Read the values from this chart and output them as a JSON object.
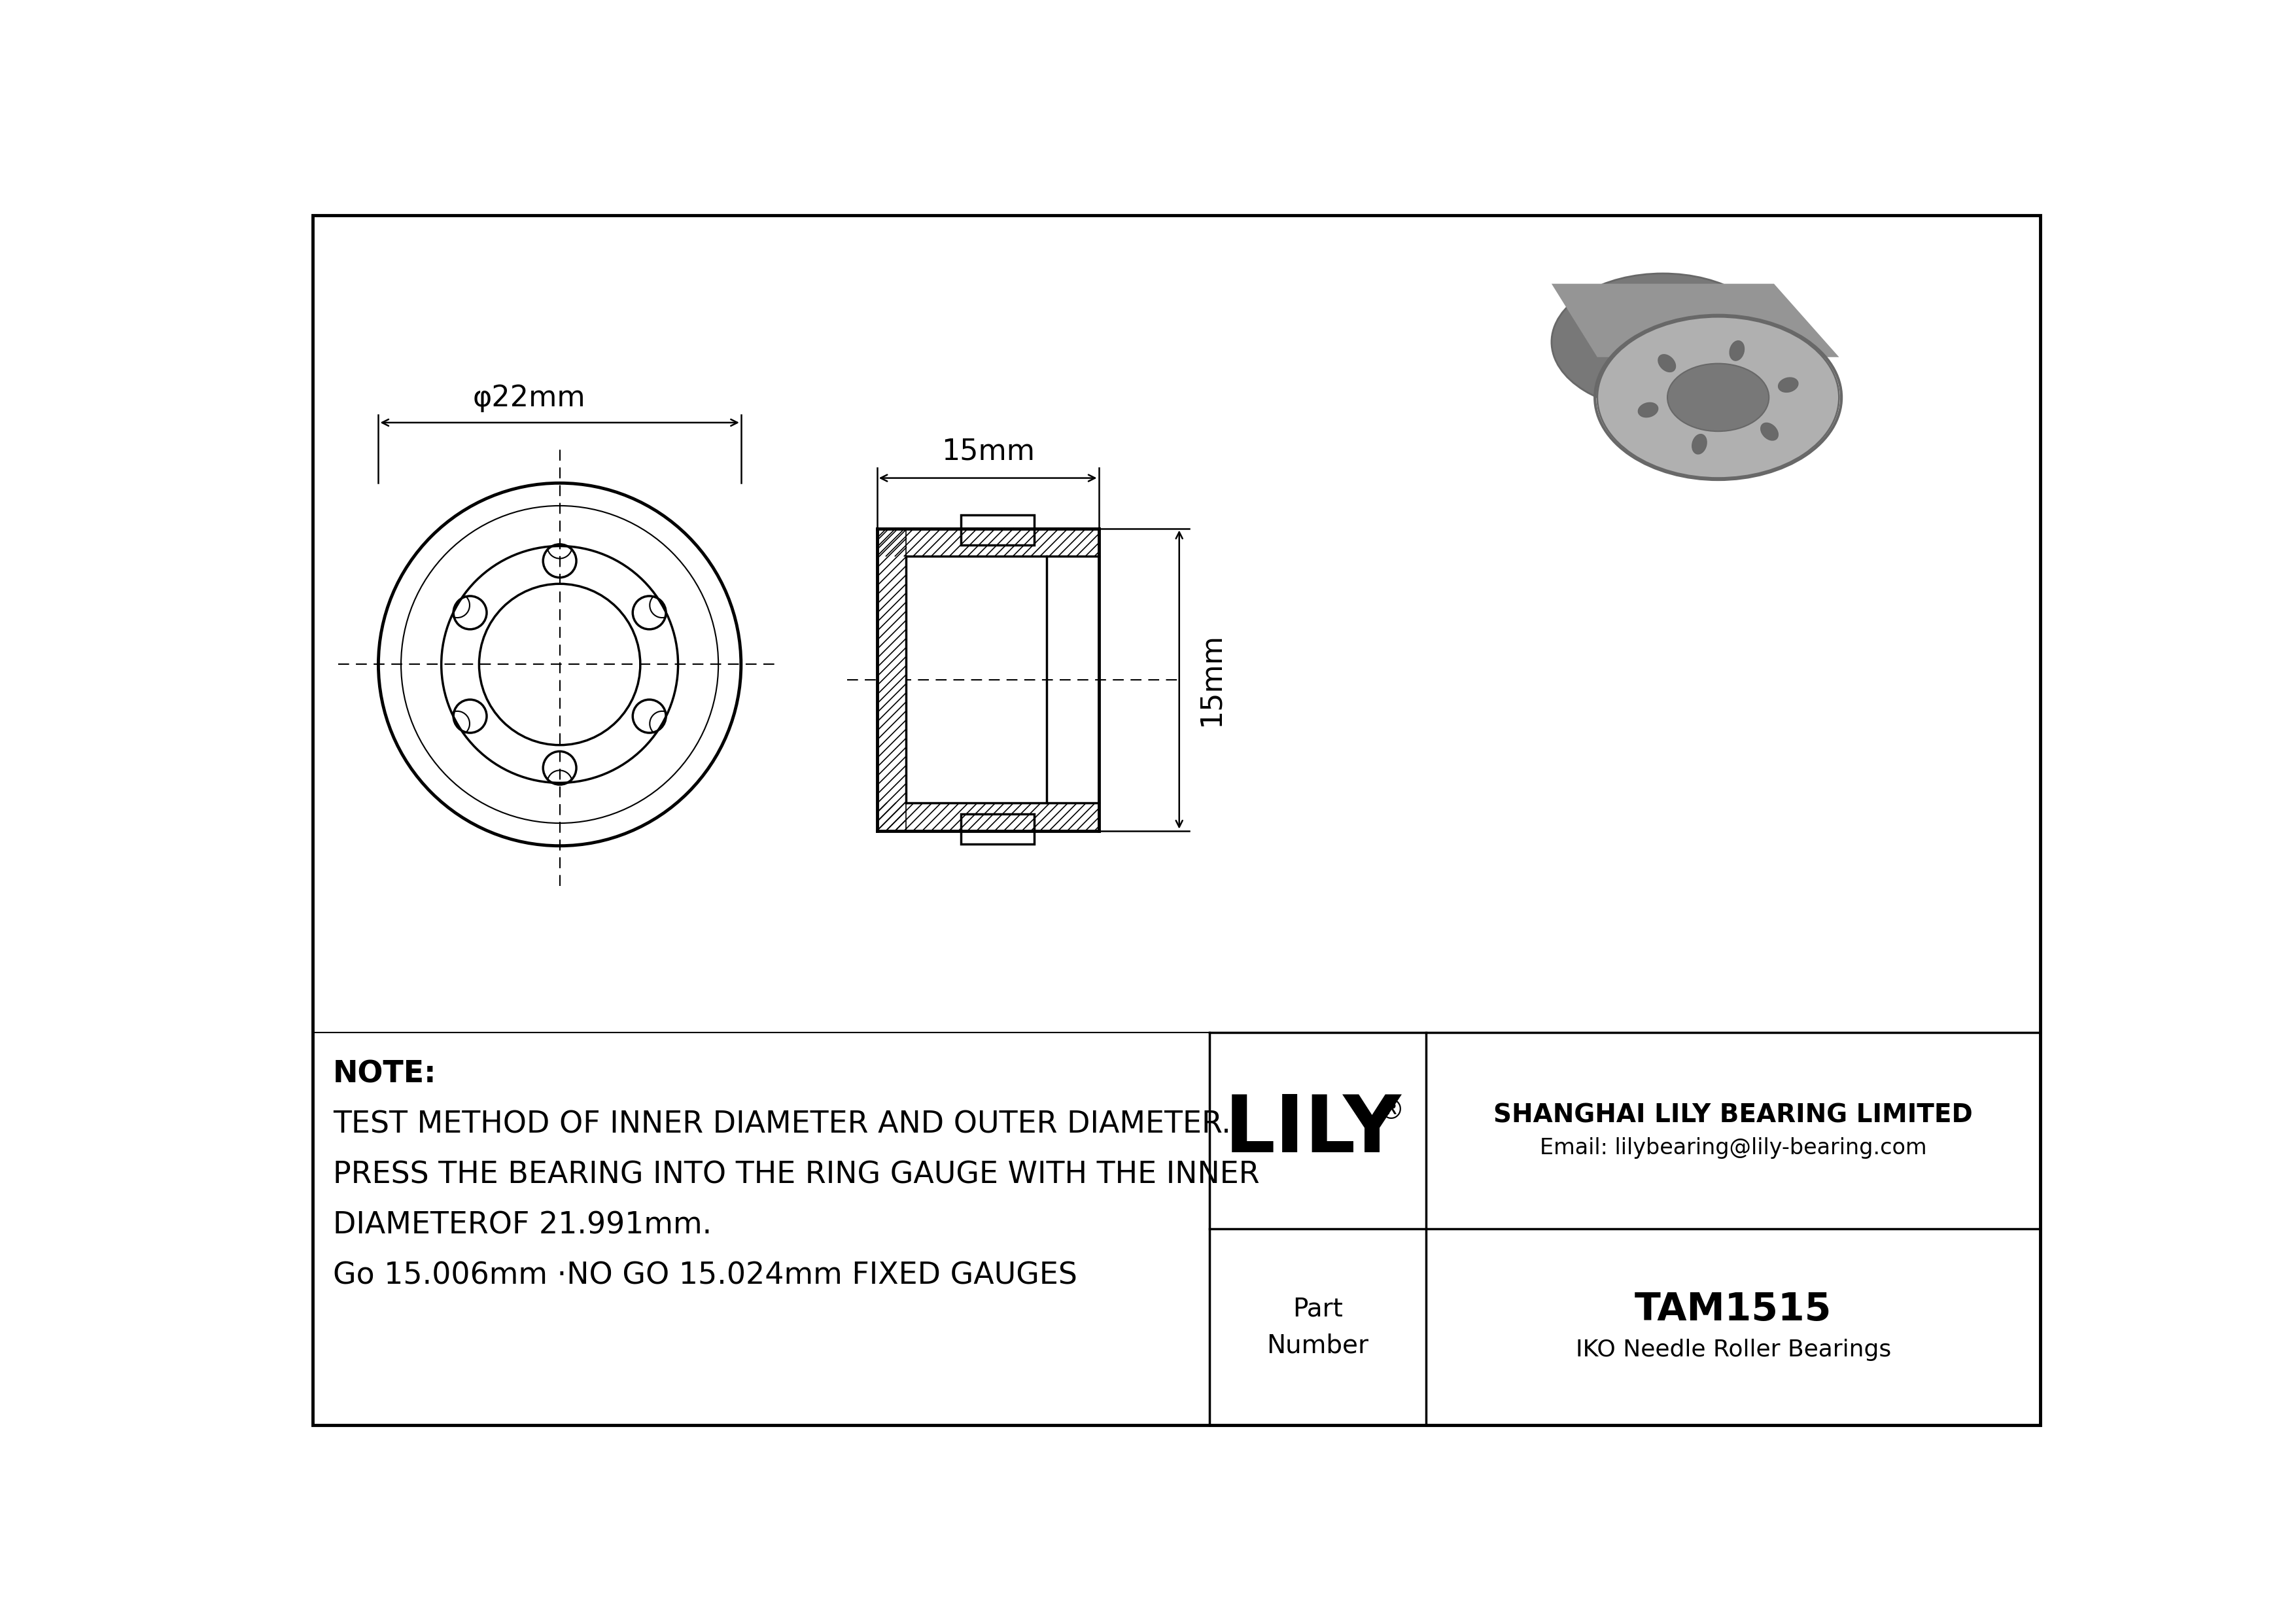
{
  "bg_color": "#ffffff",
  "line_color": "#000000",
  "note_lines": [
    "NOTE:",
    "TEST METHOD OF INNER DIAMETER AND OUTER DIAMETER.",
    "PRESS THE BEARING INTO THE RING GAUGE WITH THE INNER",
    "DIAMETEROF 21.991mm.",
    "Go 15.006mm ·NO GO 15.024mm FIXED GAUGES"
  ],
  "company_name": "SHANGHAI LILY BEARING LIMITED",
  "company_email": "Email: lilybearing@lily-bearing.com",
  "brand": "LILY",
  "part_label": "Part\nNumber",
  "part_number": "TAM1515",
  "part_type": "IKO Needle Roller Bearings",
  "dim_od": "φ22mm",
  "dim_width": "15mm",
  "dim_height": "15mm",
  "gray_3d_light": "#b0b0b0",
  "gray_3d_mid": "#959595",
  "gray_3d_dark": "#787878",
  "gray_3d_darker": "#686868",
  "gray_3d_slot": "#6a6a6a"
}
